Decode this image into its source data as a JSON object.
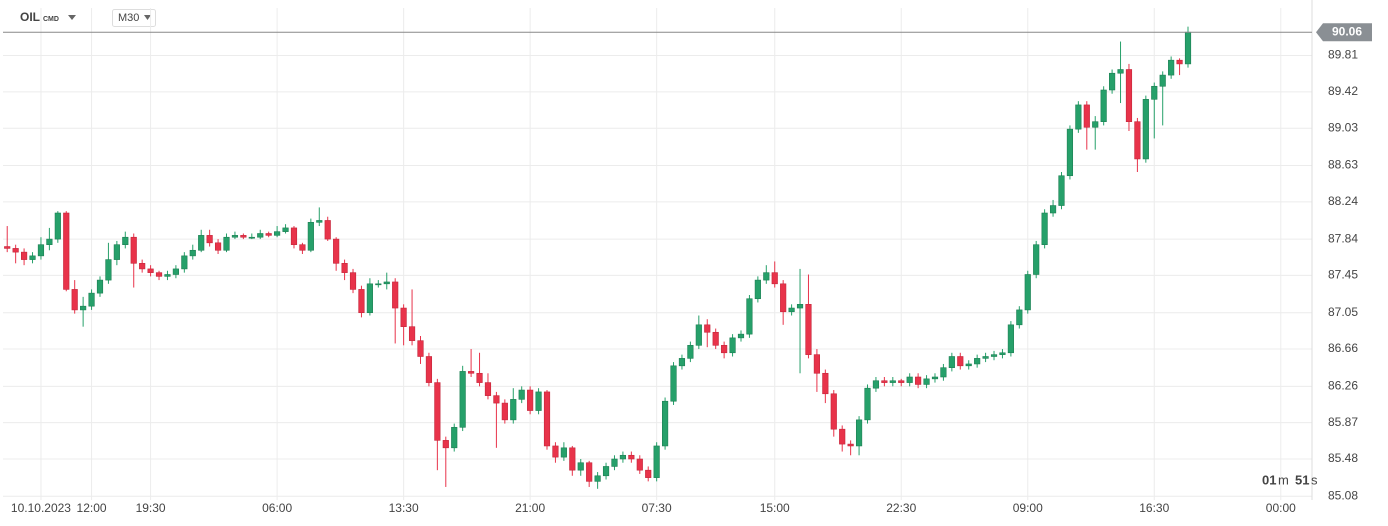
{
  "header": {
    "symbol": "OIL",
    "symbol_type": "CMD",
    "interval": "M30"
  },
  "timer": {
    "minutes": "01",
    "minutes_unit": "m",
    "seconds": "51",
    "seconds_unit": "s"
  },
  "chart_data": {
    "type": "candlestick",
    "up_color": "#26a06a",
    "down_color": "#e8334a",
    "grid": true,
    "ylim": [
      85.04,
      90.32
    ],
    "yticks": [
      85.08,
      85.48,
      85.87,
      86.26,
      86.66,
      87.05,
      87.45,
      87.84,
      88.24,
      88.63,
      89.03,
      89.42,
      89.81
    ],
    "categories": [
      null,
      null,
      null,
      null,
      "10.10.2023",
      null,
      null,
      null,
      null,
      null,
      "12:00",
      null,
      null,
      null,
      null,
      null,
      null,
      "19:30",
      null,
      null,
      null,
      null,
      null,
      null,
      null,
      null,
      null,
      null,
      null,
      null,
      null,
      null,
      "06:00",
      null,
      null,
      null,
      null,
      null,
      null,
      null,
      null,
      null,
      null,
      null,
      null,
      null,
      null,
      "13:30",
      null,
      null,
      null,
      null,
      null,
      null,
      null,
      null,
      null,
      null,
      null,
      null,
      null,
      null,
      "21:00",
      null,
      null,
      null,
      null,
      null,
      null,
      null,
      null,
      null,
      null,
      null,
      null,
      null,
      null,
      "07:30",
      null,
      null,
      null,
      null,
      null,
      null,
      null,
      null,
      null,
      null,
      null,
      null,
      null,
      "15:00",
      null,
      null,
      null,
      null,
      null,
      null,
      null,
      null,
      null,
      null,
      null,
      null,
      null,
      null,
      "22:30",
      null,
      null,
      null,
      null,
      null,
      null,
      null,
      null,
      null,
      null,
      null,
      null,
      null,
      null,
      "09:00",
      null,
      null,
      null,
      null,
      null,
      null,
      null,
      null,
      null,
      null,
      null,
      null,
      null,
      null,
      "16:30",
      null,
      null,
      null,
      null,
      null,
      null,
      null,
      null,
      null,
      null,
      null,
      null,
      null,
      null,
      "00:00"
    ],
    "ohlc": [
      [
        87.76,
        87.98,
        87.7,
        87.74
      ],
      [
        87.74,
        87.78,
        87.58,
        87.7
      ],
      [
        87.7,
        87.74,
        87.56,
        87.62
      ],
      [
        87.62,
        87.7,
        87.58,
        87.66
      ],
      [
        87.66,
        87.86,
        87.62,
        87.78
      ],
      [
        87.78,
        87.96,
        87.72,
        87.84
      ],
      [
        87.84,
        88.14,
        87.8,
        88.12
      ],
      [
        88.12,
        88.14,
        87.28,
        87.3
      ],
      [
        87.3,
        87.4,
        87.04,
        87.08
      ],
      [
        87.08,
        87.22,
        86.9,
        87.12
      ],
      [
        87.12,
        87.3,
        87.08,
        87.26
      ],
      [
        87.26,
        87.44,
        87.22,
        87.4
      ],
      [
        87.4,
        87.8,
        87.36,
        87.62
      ],
      [
        87.62,
        87.82,
        87.56,
        87.78
      ],
      [
        87.78,
        87.92,
        87.74,
        87.86
      ],
      [
        87.86,
        87.9,
        87.32,
        87.58
      ],
      [
        87.58,
        87.62,
        87.48,
        87.52
      ],
      [
        87.52,
        87.56,
        87.44,
        87.48
      ],
      [
        87.48,
        87.5,
        87.4,
        87.44
      ],
      [
        87.44,
        87.5,
        87.4,
        87.46
      ],
      [
        87.46,
        87.56,
        87.42,
        87.52
      ],
      [
        87.52,
        87.7,
        87.48,
        87.66
      ],
      [
        87.66,
        87.78,
        87.62,
        87.72
      ],
      [
        87.72,
        87.94,
        87.7,
        87.88
      ],
      [
        87.88,
        87.94,
        87.76,
        87.8
      ],
      [
        87.8,
        87.84,
        87.68,
        87.72
      ],
      [
        87.72,
        87.9,
        87.7,
        87.86
      ],
      [
        87.86,
        87.92,
        87.84,
        87.88
      ],
      [
        87.88,
        87.9,
        87.84,
        87.86
      ],
      [
        87.86,
        87.9,
        87.84,
        87.86
      ],
      [
        87.86,
        87.94,
        87.84,
        87.9
      ],
      [
        87.9,
        87.92,
        87.86,
        87.88
      ],
      [
        87.88,
        87.98,
        87.86,
        87.92
      ],
      [
        87.92,
        88.0,
        87.9,
        87.96
      ],
      [
        87.96,
        87.98,
        87.74,
        87.78
      ],
      [
        87.78,
        87.8,
        87.68,
        87.72
      ],
      [
        87.72,
        88.06,
        87.7,
        88.02
      ],
      [
        88.02,
        88.18,
        87.98,
        88.04
      ],
      [
        88.04,
        88.08,
        87.82,
        87.84
      ],
      [
        87.84,
        87.86,
        87.5,
        87.58
      ],
      [
        87.58,
        87.62,
        87.4,
        87.48
      ],
      [
        87.48,
        87.52,
        87.26,
        87.3
      ],
      [
        87.3,
        87.34,
        87.0,
        87.05
      ],
      [
        87.05,
        87.42,
        87.02,
        87.36
      ],
      [
        87.36,
        87.4,
        87.32,
        87.36
      ],
      [
        87.36,
        87.48,
        87.3,
        87.38
      ],
      [
        87.38,
        87.42,
        86.72,
        87.1
      ],
      [
        87.1,
        87.14,
        86.7,
        86.9
      ],
      [
        86.9,
        87.3,
        86.7,
        86.75
      ],
      [
        86.75,
        86.8,
        86.5,
        86.58
      ],
      [
        86.58,
        86.62,
        86.26,
        86.3
      ],
      [
        86.3,
        86.34,
        85.36,
        85.68
      ],
      [
        85.68,
        85.72,
        85.18,
        85.6
      ],
      [
        85.6,
        85.86,
        85.56,
        85.82
      ],
      [
        85.82,
        86.48,
        85.78,
        86.42
      ],
      [
        86.42,
        86.66,
        86.36,
        86.4
      ],
      [
        86.4,
        86.62,
        86.26,
        86.3
      ],
      [
        86.3,
        86.4,
        86.12,
        86.16
      ],
      [
        86.16,
        86.2,
        85.6,
        86.08
      ],
      [
        86.08,
        86.12,
        85.86,
        85.9
      ],
      [
        85.9,
        86.24,
        85.86,
        86.12
      ],
      [
        86.12,
        86.26,
        86.08,
        86.22
      ],
      [
        86.22,
        86.26,
        85.96,
        86.0
      ],
      [
        86.0,
        86.24,
        85.96,
        86.2
      ],
      [
        86.2,
        86.22,
        85.58,
        85.62
      ],
      [
        85.62,
        85.66,
        85.44,
        85.5
      ],
      [
        85.5,
        85.66,
        85.46,
        85.6
      ],
      [
        85.6,
        85.62,
        85.3,
        85.36
      ],
      [
        85.36,
        85.48,
        85.3,
        85.44
      ],
      [
        85.44,
        85.46,
        85.18,
        85.24
      ],
      [
        85.24,
        85.34,
        85.16,
        85.3
      ],
      [
        85.3,
        85.44,
        85.26,
        85.4
      ],
      [
        85.4,
        85.52,
        85.36,
        85.48
      ],
      [
        85.48,
        85.56,
        85.44,
        85.52
      ],
      [
        85.52,
        85.56,
        85.44,
        85.48
      ],
      [
        85.48,
        85.52,
        85.32,
        85.36
      ],
      [
        85.36,
        85.4,
        85.24,
        85.28
      ],
      [
        85.28,
        85.66,
        85.24,
        85.62
      ],
      [
        85.62,
        86.14,
        85.58,
        86.1
      ],
      [
        86.1,
        86.52,
        86.06,
        86.48
      ],
      [
        86.48,
        86.6,
        86.44,
        86.56
      ],
      [
        86.56,
        86.74,
        86.52,
        86.7
      ],
      [
        86.7,
        87.02,
        86.66,
        86.92
      ],
      [
        86.92,
        86.98,
        86.68,
        86.84
      ],
      [
        86.84,
        86.88,
        86.66,
        86.7
      ],
      [
        86.7,
        86.74,
        86.56,
        86.62
      ],
      [
        86.62,
        86.82,
        86.58,
        86.78
      ],
      [
        86.78,
        86.86,
        86.74,
        86.82
      ],
      [
        86.82,
        87.24,
        86.78,
        87.2
      ],
      [
        87.2,
        87.44,
        87.16,
        87.4
      ],
      [
        87.4,
        87.56,
        87.36,
        87.48
      ],
      [
        87.48,
        87.6,
        87.32,
        87.36
      ],
      [
        87.36,
        87.4,
        86.92,
        87.06
      ],
      [
        87.06,
        87.14,
        87.02,
        87.1
      ],
      [
        87.1,
        87.52,
        86.4,
        87.14
      ],
      [
        87.14,
        87.46,
        86.56,
        86.6
      ],
      [
        86.6,
        86.66,
        86.2,
        86.4
      ],
      [
        86.4,
        86.44,
        86.08,
        86.18
      ],
      [
        86.18,
        86.22,
        85.72,
        85.8
      ],
      [
        85.8,
        85.84,
        85.56,
        85.64
      ],
      [
        85.64,
        85.68,
        85.52,
        85.62
      ],
      [
        85.62,
        85.94,
        85.52,
        85.9
      ],
      [
        85.9,
        86.28,
        85.86,
        86.24
      ],
      [
        86.24,
        86.36,
        86.2,
        86.32
      ],
      [
        86.32,
        86.36,
        86.26,
        86.3
      ],
      [
        86.3,
        86.36,
        86.26,
        86.32
      ],
      [
        86.32,
        86.34,
        86.26,
        86.3
      ],
      [
        86.3,
        86.4,
        86.26,
        86.36
      ],
      [
        86.36,
        86.4,
        86.24,
        86.28
      ],
      [
        86.28,
        86.38,
        86.24,
        86.34
      ],
      [
        86.34,
        86.4,
        86.3,
        86.36
      ],
      [
        86.36,
        86.5,
        86.32,
        86.46
      ],
      [
        86.46,
        86.62,
        86.42,
        86.58
      ],
      [
        86.58,
        86.62,
        86.44,
        86.48
      ],
      [
        86.48,
        86.54,
        86.44,
        86.5
      ],
      [
        86.5,
        86.6,
        86.46,
        86.56
      ],
      [
        86.56,
        86.62,
        86.52,
        86.58
      ],
      [
        86.58,
        86.64,
        86.54,
        86.6
      ],
      [
        86.6,
        86.66,
        86.56,
        86.62
      ],
      [
        86.62,
        86.96,
        86.58,
        86.92
      ],
      [
        86.92,
        87.12,
        86.88,
        87.08
      ],
      [
        87.08,
        87.5,
        87.04,
        87.46
      ],
      [
        87.46,
        87.82,
        87.42,
        87.78
      ],
      [
        87.78,
        88.16,
        87.74,
        88.12
      ],
      [
        88.12,
        88.26,
        88.08,
        88.2
      ],
      [
        88.2,
        88.56,
        88.16,
        88.52
      ],
      [
        88.52,
        89.06,
        88.48,
        89.02
      ],
      [
        89.02,
        89.32,
        88.98,
        89.28
      ],
      [
        89.28,
        89.32,
        88.8,
        89.04
      ],
      [
        89.04,
        89.16,
        88.8,
        89.1
      ],
      [
        89.1,
        89.48,
        89.06,
        89.44
      ],
      [
        89.44,
        89.66,
        89.4,
        89.62
      ],
      [
        89.62,
        89.96,
        89.3,
        89.66
      ],
      [
        89.66,
        89.72,
        89.0,
        89.1
      ],
      [
        89.1,
        89.14,
        88.56,
        88.7
      ],
      [
        88.7,
        89.38,
        88.66,
        89.34
      ],
      [
        89.34,
        89.52,
        88.92,
        89.48
      ],
      [
        89.48,
        89.64,
        89.06,
        89.6
      ],
      [
        89.6,
        89.8,
        89.56,
        89.76
      ],
      [
        89.76,
        89.78,
        89.6,
        89.72
      ],
      [
        89.72,
        90.12,
        89.68,
        90.06
      ],
      null,
      null,
      null,
      null,
      null,
      null,
      null,
      null,
      null,
      null,
      null
    ]
  }
}
